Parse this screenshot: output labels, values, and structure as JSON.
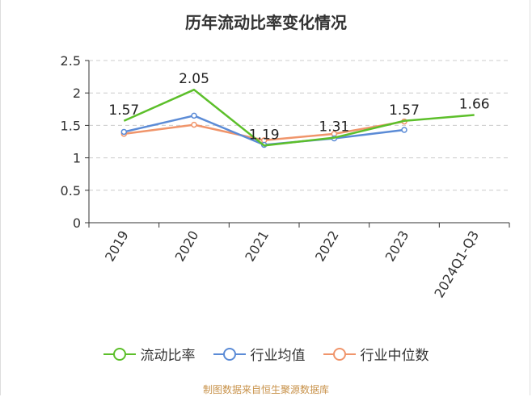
{
  "chart_data": {
    "type": "line",
    "title": "历年流动比率变化情况",
    "categories": [
      "2019",
      "2020",
      "2021",
      "2022",
      "2023",
      "2024Q1-Q3"
    ],
    "ylim": [
      0,
      2.5
    ],
    "yticks": [
      "0",
      "0.5",
      "1",
      "1.5",
      "2",
      "2.5"
    ],
    "grid": "horizontal dashed",
    "legend_position": "bottom",
    "series": [
      {
        "name": "流动比率",
        "color": "#5cbf2a",
        "values": [
          1.57,
          2.05,
          1.19,
          1.31,
          1.57,
          1.66
        ],
        "labels": [
          "1.57",
          "2.05",
          "1.19",
          "1.31",
          "1.57",
          "1.66"
        ]
      },
      {
        "name": "行业均值",
        "color": "#5b8bd6",
        "values": [
          1.4,
          1.65,
          1.2,
          1.3,
          1.43,
          null
        ]
      },
      {
        "name": "行业中位数",
        "color": "#f0956b",
        "values": [
          1.37,
          1.51,
          1.27,
          1.37,
          1.56,
          null
        ]
      }
    ]
  },
  "source": "制图数据来自恒生聚源数据库"
}
